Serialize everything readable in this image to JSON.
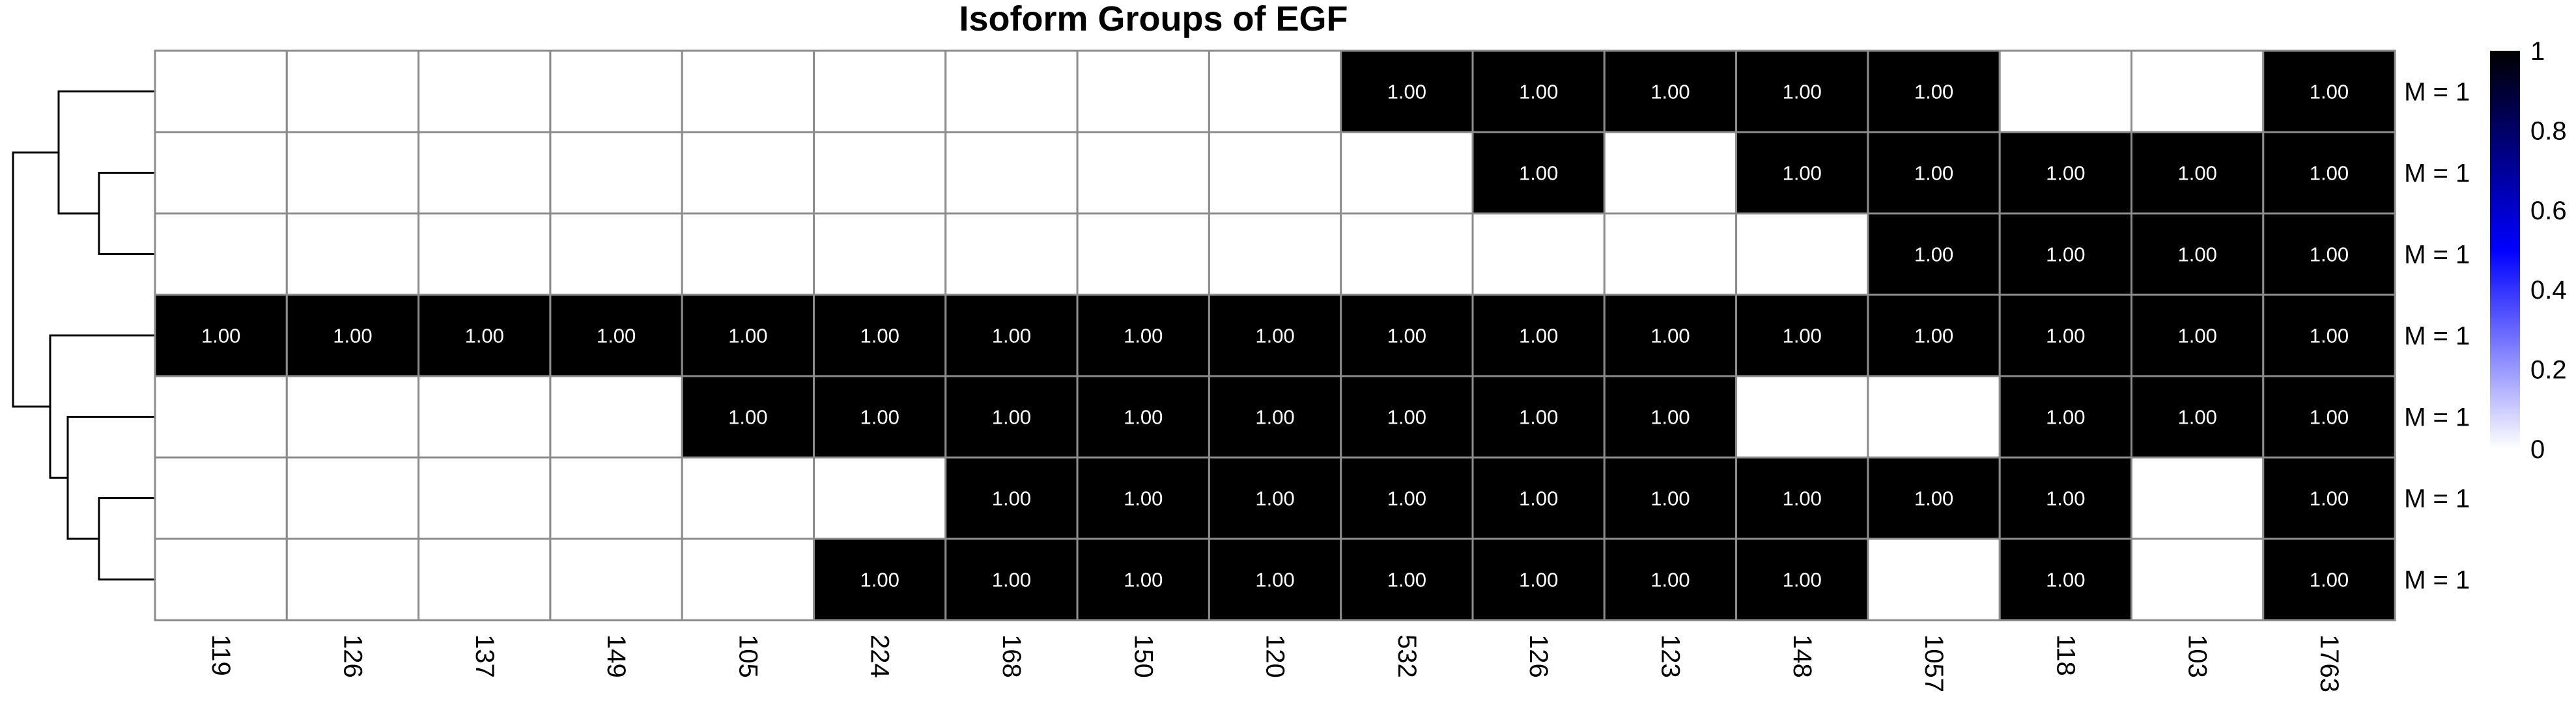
{
  "chart_data": {
    "type": "heatmap",
    "title": "Isoform Groups of EGF",
    "columns": [
      "119",
      "126",
      "137",
      "149",
      "105",
      "224",
      "168",
      "150",
      "120",
      "532",
      "126",
      "123",
      "148",
      "1057",
      "118",
      "103",
      "1763"
    ],
    "rows": [
      "M = 1",
      "M = 1",
      "M = 1",
      "M = 1",
      "M = 1",
      "M = 1",
      "M = 1"
    ],
    "values": [
      [
        0,
        0,
        0,
        0,
        0,
        0,
        0,
        0,
        0,
        1,
        1,
        1,
        1,
        1,
        0,
        0,
        1
      ],
      [
        0,
        0,
        0,
        0,
        0,
        0,
        0,
        0,
        0,
        0,
        1,
        0,
        1,
        1,
        1,
        1,
        1
      ],
      [
        0,
        0,
        0,
        0,
        0,
        0,
        0,
        0,
        0,
        0,
        0,
        0,
        0,
        1,
        1,
        1,
        1
      ],
      [
        1,
        1,
        1,
        1,
        1,
        1,
        1,
        1,
        1,
        1,
        1,
        1,
        1,
        1,
        1,
        1,
        1
      ],
      [
        0,
        0,
        0,
        0,
        1,
        1,
        1,
        1,
        1,
        1,
        1,
        1,
        0,
        0,
        1,
        1,
        1
      ],
      [
        0,
        0,
        0,
        0,
        0,
        0,
        1,
        1,
        1,
        1,
        1,
        1,
        1,
        1,
        1,
        0,
        1
      ],
      [
        0,
        0,
        0,
        0,
        0,
        1,
        1,
        1,
        1,
        1,
        1,
        1,
        1,
        0,
        1,
        0,
        1
      ]
    ],
    "cell_label": "1.00",
    "colorbar": {
      "ticks": [
        "0",
        "0.2",
        "0.4",
        "0.6",
        "0.8",
        "1"
      ],
      "range": [
        0,
        1
      ],
      "colors": [
        "#ffffff",
        "#0000ff",
        "#000000"
      ]
    },
    "grid": true,
    "row_dendrogram": true
  }
}
